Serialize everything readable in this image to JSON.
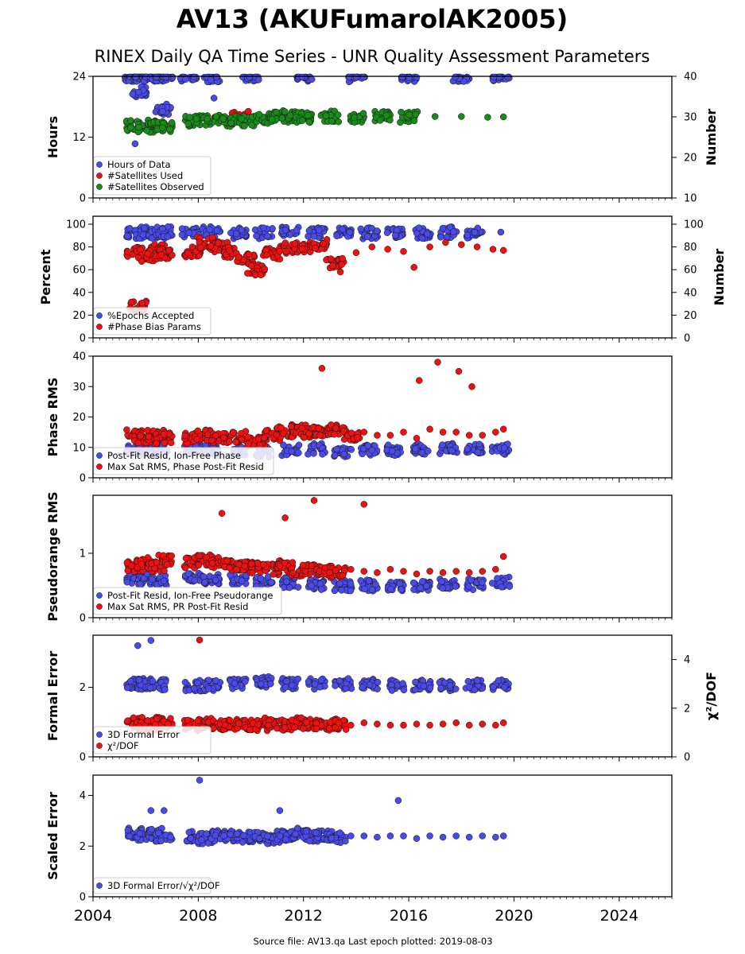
{
  "title": "AV13 (AKUFumarolAK2005)",
  "subtitle": "RINEX Daily QA Time Series - UNR Quality Assessment Parameters",
  "footer": "Source file: AV13.qa Last epoch plotted: 2019-08-03",
  "colors": {
    "blue": "#4a4ae6",
    "red": "#ee1111",
    "green": "#1a8a1a"
  },
  "chart_data": [
    {
      "type": "scatter",
      "ylabel": "Hours",
      "ylabel_right": "Number",
      "ylim": [
        0,
        24
      ],
      "ylim_right": [
        10,
        40
      ],
      "yticks": [
        "0",
        "12",
        "24"
      ],
      "yticks_right": [
        "10",
        "20",
        "30",
        "40"
      ],
      "xlim": [
        2004,
        2026
      ],
      "xticks": [
        "2004",
        "2008",
        "2012",
        "2016",
        "2020",
        "2024"
      ],
      "legend_position": "lower-left",
      "series": [
        {
          "name": "Hours of Data",
          "color": "#4a4ae6",
          "axis": "left",
          "x": [
            2005.55,
            2005.7,
            2005.9,
            2006.2,
            2006.5,
            2006.7,
            2007.6,
            2008.5,
            2010,
            2012,
            2014,
            2016,
            2018,
            2019.5,
            2005.7,
            2006.7,
            2008.6,
            2005.6
          ],
          "y": [
            24,
            24,
            24,
            24,
            24,
            24,
            24,
            24,
            24,
            24,
            24,
            24,
            24,
            24,
            21,
            17.5,
            19.7,
            10.7
          ]
        },
        {
          "name": "#Satellites Used",
          "color": "#ee1111",
          "axis": "right",
          "x": [
            2009.6
          ],
          "y": [
            30
          ]
        },
        {
          "name": "#Satellites Observed",
          "color": "#1a8a1a",
          "axis": "right",
          "x": [
            2005.6,
            2006.0,
            2006.4,
            2006.7,
            2007.8,
            2008.5,
            2009.2,
            2009.8,
            2010.5,
            2011.0,
            2011.5,
            2012.0,
            2013.0,
            2014.0,
            2015.0,
            2016.0,
            2017.0,
            2018.0,
            2019.0,
            2019.6
          ],
          "y": [
            27.8,
            27.5,
            28.0,
            27.7,
            29.0,
            29.3,
            29.0,
            28.8,
            29.6,
            30.2,
            30.0,
            29.9,
            30.1,
            29.8,
            30.0,
            30.0,
            30.1,
            30.1,
            29.9,
            30.0
          ]
        }
      ]
    },
    {
      "type": "scatter",
      "ylabel": "Percent",
      "ylabel_right": "Number",
      "ylim": [
        0,
        107
      ],
      "ylim_right": [
        0,
        107
      ],
      "yticks": [
        "0",
        "20",
        "40",
        "60",
        "80",
        "100"
      ],
      "yticks_right": [
        "0",
        "20",
        "40",
        "60",
        "80",
        "100"
      ],
      "xlim": [
        2004,
        2026
      ],
      "legend_position": "lower-left",
      "series": [
        {
          "name": "%Epochs Accepted",
          "color": "#4a4ae6",
          "axis": "left",
          "x": [
            2005.6,
            2006.0,
            2006.4,
            2006.7,
            2007.7,
            2008.5,
            2009.5,
            2010.5,
            2011.5,
            2012.5,
            2013.5,
            2014.5,
            2015.5,
            2016.5,
            2017.5,
            2018.5,
            2019.5
          ],
          "y": [
            92,
            93,
            92,
            93,
            93,
            93,
            92,
            92,
            93,
            92,
            92,
            92,
            92,
            92,
            93,
            92,
            93
          ]
        },
        {
          "name": "#Phase Bias Params",
          "color": "#ee1111",
          "axis": "right",
          "x": [
            2005.6,
            2005.7,
            2006.0,
            2006.4,
            2006.7,
            2007.8,
            2008.3,
            2008.8,
            2009.3,
            2009.8,
            2010.2,
            2010.8,
            2011.4,
            2012.0,
            2012.6,
            2013.2,
            2013.4,
            2014.0,
            2014.6,
            2015.2,
            2015.8,
            2016.2,
            2016.8,
            2017.4,
            2018.0,
            2018.6,
            2019.2,
            2019.6
          ],
          "y": [
            75,
            28,
            72,
            78,
            74,
            76,
            84,
            80,
            75,
            70,
            60,
            74,
            79,
            80,
            82,
            66,
            58,
            75,
            80,
            78,
            76,
            62,
            80,
            84,
            82,
            80,
            78,
            77
          ]
        }
      ]
    },
    {
      "type": "scatter",
      "ylabel": "Phase RMS",
      "ylim": [
        0,
        40
      ],
      "yticks": [
        "0",
        "10",
        "20",
        "30",
        "40"
      ],
      "xlim": [
        2004,
        2026
      ],
      "legend_position": "lower-left",
      "series": [
        {
          "name": "Post-Fit Resid, Ion-Free Phase",
          "color": "#4a4ae6",
          "x": [
            2005.6,
            2006.0,
            2006.5,
            2007.8,
            2008.5,
            2009.5,
            2010.5,
            2011.5,
            2012.5,
            2013.5,
            2014.5,
            2015.5,
            2016.5,
            2017.5,
            2018.5,
            2019.5
          ],
          "y": [
            9,
            9.5,
            9,
            9.5,
            9,
            9,
            8.5,
            9,
            9.5,
            8.5,
            9,
            9,
            9.5,
            9.5,
            9.5,
            9.5
          ]
        },
        {
          "name": "Max Sat RMS, Phase Post-Fit Resid",
          "color": "#ee1111",
          "x": [
            2005.6,
            2006.0,
            2006.4,
            2006.7,
            2007.8,
            2008.2,
            2008.8,
            2009.5,
            2010.2,
            2010.8,
            2011.3,
            2011.8,
            2012.2,
            2012.7,
            2013.3,
            2013.8,
            2014.3,
            2014.8,
            2015.3,
            2015.8,
            2016.3,
            2016.8,
            2017.3,
            2017.8,
            2018.3,
            2018.8,
            2019.3,
            2019.6,
            2012.7,
            2017.1,
            2017.9,
            2016.4,
            2018.4
          ],
          "y": [
            14,
            13,
            14,
            13,
            13,
            14,
            13,
            13.5,
            12,
            14,
            15,
            16,
            15,
            15,
            16,
            14,
            15,
            14,
            14,
            15,
            13,
            16,
            15,
            15,
            14,
            14,
            15,
            16,
            36,
            38,
            35,
            32,
            30
          ]
        }
      ]
    },
    {
      "type": "scatter",
      "ylabel": "Pseudorange RMS",
      "ylim": [
        0,
        1.9
      ],
      "yticks": [
        "0",
        "1"
      ],
      "xlim": [
        2004,
        2026
      ],
      "legend_position": "lower-left",
      "series": [
        {
          "name": "Post-Fit Resid, Ion-Free Pseudorange",
          "color": "#4a4ae6",
          "x": [
            2005.6,
            2006.0,
            2006.5,
            2007.8,
            2008.5,
            2009.5,
            2010.5,
            2011.5,
            2012.5,
            2013.5,
            2014.5,
            2015.5,
            2016.5,
            2017.5,
            2018.5,
            2019.5
          ],
          "y": [
            0.62,
            0.6,
            0.58,
            0.62,
            0.6,
            0.58,
            0.56,
            0.55,
            0.52,
            0.5,
            0.5,
            0.5,
            0.5,
            0.52,
            0.52,
            0.55
          ]
        },
        {
          "name": "Max Sat RMS, PR Post-Fit Resid",
          "color": "#ee1111",
          "x": [
            2005.6,
            2006.0,
            2006.4,
            2006.7,
            2007.8,
            2008.3,
            2008.8,
            2009.3,
            2009.8,
            2010.3,
            2010.8,
            2011.3,
            2011.8,
            2012.3,
            2012.8,
            2013.3,
            2013.8,
            2014.3,
            2014.8,
            2015.3,
            2015.8,
            2016.3,
            2016.8,
            2017.3,
            2017.8,
            2018.3,
            2018.8,
            2019.3,
            2019.6,
            2012.4,
            2014.3,
            2008.9,
            2011.3
          ],
          "y": [
            0.8,
            0.85,
            0.8,
            0.9,
            0.85,
            0.9,
            0.85,
            0.82,
            0.8,
            0.78,
            0.75,
            0.8,
            0.72,
            0.75,
            0.72,
            0.7,
            0.75,
            0.72,
            0.7,
            0.75,
            0.72,
            0.68,
            0.72,
            0.7,
            0.72,
            0.7,
            0.72,
            0.75,
            0.95,
            1.82,
            1.76,
            1.62,
            1.55
          ]
        }
      ]
    },
    {
      "type": "scatter",
      "ylabel": "Formal Error",
      "ylabel_right": "χ²/DOF",
      "ylim": [
        0,
        3.5
      ],
      "ylim_right": [
        0,
        5
      ],
      "yticks": [
        "0",
        "2"
      ],
      "yticks_right": [
        "0",
        "2",
        "4"
      ],
      "xlim": [
        2004,
        2026
      ],
      "legend_position": "lower-left",
      "series": [
        {
          "name": "3D Formal Error",
          "color": "#4a4ae6",
          "axis": "left",
          "x": [
            2005.6,
            2006.0,
            2006.5,
            2007.8,
            2008.5,
            2009.5,
            2010.5,
            2011.5,
            2012.5,
            2013.5,
            2014.5,
            2015.5,
            2016.5,
            2017.5,
            2018.5,
            2019.5,
            2005.7,
            2006.2
          ],
          "y": [
            2.1,
            2.1,
            2.08,
            2.05,
            2.05,
            2.1,
            2.15,
            2.1,
            2.1,
            2.1,
            2.1,
            2.05,
            2.05,
            2.05,
            2.08,
            2.08,
            3.2,
            3.35
          ]
        },
        {
          "name": "χ²/DOF",
          "color": "#ee1111",
          "axis": "right",
          "x": [
            2005.6,
            2006.0,
            2006.4,
            2006.7,
            2007.8,
            2008.3,
            2008.8,
            2009.3,
            2009.8,
            2010.3,
            2010.8,
            2011.3,
            2011.8,
            2012.3,
            2012.8,
            2013.3,
            2013.8,
            2014.3,
            2014.8,
            2015.3,
            2015.8,
            2016.3,
            2016.8,
            2017.3,
            2017.8,
            2018.3,
            2018.8,
            2019.3,
            2019.6,
            2008.05
          ],
          "y": [
            1.4,
            1.2,
            1.3,
            1.4,
            1.3,
            1.4,
            1.3,
            1.35,
            1.3,
            1.3,
            1.4,
            1.3,
            1.4,
            1.35,
            1.3,
            1.35,
            1.3,
            1.4,
            1.35,
            1.3,
            1.3,
            1.35,
            1.3,
            1.35,
            1.4,
            1.3,
            1.35,
            1.3,
            1.4,
            4.8
          ]
        }
      ]
    },
    {
      "type": "scatter",
      "ylabel": "Scaled Error",
      "ylim": [
        0,
        4.8
      ],
      "yticks": [
        "0",
        "2",
        "4"
      ],
      "xlim": [
        2004,
        2026
      ],
      "xticks": [
        "2004",
        "2008",
        "2012",
        "2016",
        "2020",
        "2024"
      ],
      "legend_position": "lower-left",
      "series": [
        {
          "name": "3D Formal Error/√χ²/DOF",
          "color": "#4a4ae6",
          "x": [
            2005.6,
            2006.0,
            2006.4,
            2006.7,
            2007.8,
            2008.3,
            2008.8,
            2009.3,
            2009.8,
            2010.3,
            2010.8,
            2011.3,
            2011.8,
            2012.3,
            2012.8,
            2013.3,
            2013.8,
            2014.3,
            2014.8,
            2015.3,
            2015.8,
            2016.3,
            2016.8,
            2017.3,
            2017.8,
            2018.3,
            2018.8,
            2019.3,
            2019.6,
            2008.05,
            2015.6,
            2006.2,
            2006.7,
            2011.1
          ],
          "y": [
            2.5,
            2.4,
            2.5,
            2.4,
            2.4,
            2.3,
            2.4,
            2.4,
            2.35,
            2.4,
            2.3,
            2.4,
            2.5,
            2.4,
            2.4,
            2.35,
            2.4,
            2.4,
            2.35,
            2.4,
            2.4,
            2.3,
            2.4,
            2.35,
            2.4,
            2.35,
            2.4,
            2.35,
            2.4,
            4.6,
            3.8,
            3.4,
            3.4,
            3.4
          ]
        }
      ]
    }
  ]
}
